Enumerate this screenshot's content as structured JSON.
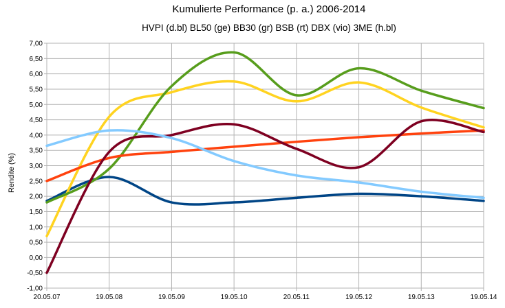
{
  "chart_data": {
    "type": "line",
    "title": "Kumulierte Performance (p. a.) 2006-2014",
    "subtitle": "HVPI (d.bl) BL50 (ge) BB30 (gr) BSB (rt) DBX (vio) 3ME (h.bl)",
    "xlabel": "",
    "ylabel": "Rendite (%)",
    "categories": [
      "20.05.07",
      "19.05.08",
      "19.05.09",
      "19.05.10",
      "20.05.11",
      "19.05.12",
      "19.05.13",
      "19.05.14"
    ],
    "y_tick_labels": [
      "-1,00",
      "-0,50",
      "0,00",
      "0,50",
      "1,00",
      "1,50",
      "2,00",
      "2,50",
      "3,00",
      "3,50",
      "4,00",
      "4,50",
      "5,00",
      "5,50",
      "6,00",
      "6,50",
      "7,00"
    ],
    "ylim": [
      -1,
      7
    ],
    "y_step": 0.5,
    "grid": true,
    "smooth": true,
    "series": [
      {
        "name": "HVPI",
        "color": "#004586",
        "x": [
          0,
          1,
          2,
          3,
          4,
          5,
          6,
          7
        ],
        "values": [
          1.85,
          2.63,
          1.8,
          1.8,
          1.95,
          2.08,
          2.0,
          1.85
        ]
      },
      {
        "name": "BL50",
        "color": "#ffd320",
        "x": [
          0,
          1,
          2,
          3,
          4,
          5,
          6,
          7
        ],
        "values": [
          0.7,
          4.6,
          5.4,
          5.75,
          5.1,
          5.72,
          4.9,
          4.25
        ]
      },
      {
        "name": "BB30",
        "color": "#579d1c",
        "x": [
          0,
          1,
          2,
          3,
          4,
          5,
          6,
          7
        ],
        "values": [
          1.8,
          2.9,
          5.6,
          6.7,
          5.3,
          6.18,
          5.45,
          4.88
        ]
      },
      {
        "name": "BSB",
        "color": "#ff420e",
        "x": [
          0,
          1,
          2,
          3,
          4,
          5,
          6,
          7
        ],
        "values": [
          2.5,
          3.25,
          3.45,
          3.62,
          3.78,
          3.93,
          4.05,
          4.15
        ]
      },
      {
        "name": "DBX",
        "color": "#7e0021",
        "x": [
          0,
          1,
          2,
          3,
          4,
          5,
          6,
          7
        ],
        "values": [
          -0.5,
          3.45,
          4.0,
          4.35,
          3.55,
          2.95,
          4.45,
          4.1
        ]
      },
      {
        "name": "3ME",
        "color": "#83caff",
        "x": [
          0,
          1,
          2,
          3,
          4,
          5,
          6,
          7
        ],
        "values": [
          3.65,
          4.15,
          3.9,
          3.15,
          2.68,
          2.45,
          2.15,
          1.95
        ]
      }
    ]
  }
}
